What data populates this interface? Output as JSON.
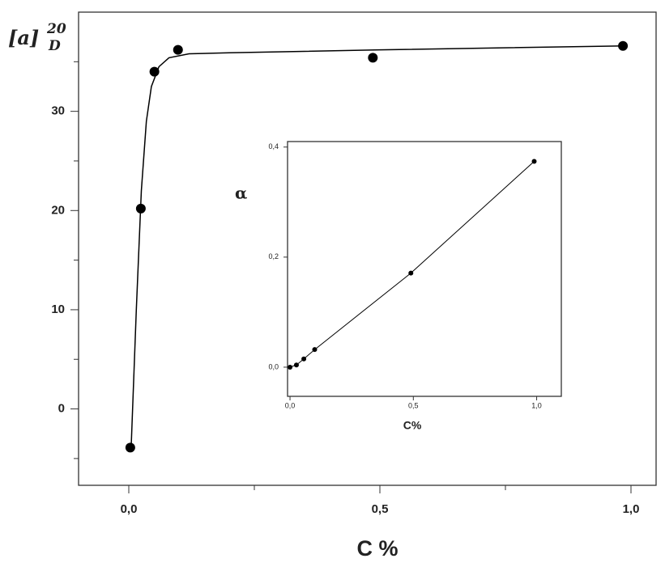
{
  "chart_data": [
    {
      "type": "scatter",
      "ylabel": "[a]",
      "ylabel_sub": "D",
      "ylabel_sup": "20",
      "xlabel": "C %",
      "xlim": [
        -0.1,
        1.05
      ],
      "ylim": [
        -7.7,
        40
      ],
      "xticks": [
        {
          "value": 0,
          "label": "0,0"
        },
        {
          "value": 0.5,
          "label": "0,5"
        },
        {
          "value": 1,
          "label": "1,0"
        }
      ],
      "xminorticks": [
        0.25,
        0.75
      ],
      "yticks": [
        0,
        10,
        20,
        30
      ],
      "yminorticks": [
        -5,
        5,
        15,
        25,
        35
      ],
      "series": [
        {
          "color": "#000000",
          "marker": true,
          "line": false,
          "x": [
            0.003,
            0.024,
            0.051,
            0.098,
            0.486,
            0.984
          ],
          "values": [
            -3.9,
            20.2,
            34.0,
            36.2,
            35.4,
            36.6
          ]
        },
        {
          "color": "#000000",
          "marker": false,
          "line": true,
          "x": [
            0.005,
            0.015,
            0.025,
            0.035,
            0.045,
            0.06,
            0.08,
            0.12,
            0.2,
            0.5,
            0.99
          ],
          "values": [
            -3.5,
            10,
            22,
            29,
            32.5,
            34.5,
            35.4,
            35.8,
            35.9,
            36.2,
            36.6
          ]
        }
      ]
    },
    {
      "type": "scatter",
      "ylabel": "α",
      "xlabel": "C%",
      "xlim": [
        -0.01,
        1.1
      ],
      "ylim": [
        -0.053,
        0.41
      ],
      "xticks": [
        {
          "value": 0,
          "label": "0,0"
        },
        {
          "value": 0.5,
          "label": "0,5"
        },
        {
          "value": 1,
          "label": "1,0"
        }
      ],
      "yticks": [
        {
          "value": 0,
          "label": "0,0"
        },
        {
          "value": 0.2,
          "label": "0,2"
        },
        {
          "value": 0.4,
          "label": "0,4"
        }
      ],
      "series": [
        {
          "color": "#000000",
          "marker": true,
          "line": true,
          "x": [
            0,
            0.026,
            0.056,
            0.1,
            0.49,
            0.99
          ],
          "values": [
            0,
            0.004,
            0.015,
            0.032,
            0.171,
            0.374
          ]
        }
      ]
    }
  ]
}
